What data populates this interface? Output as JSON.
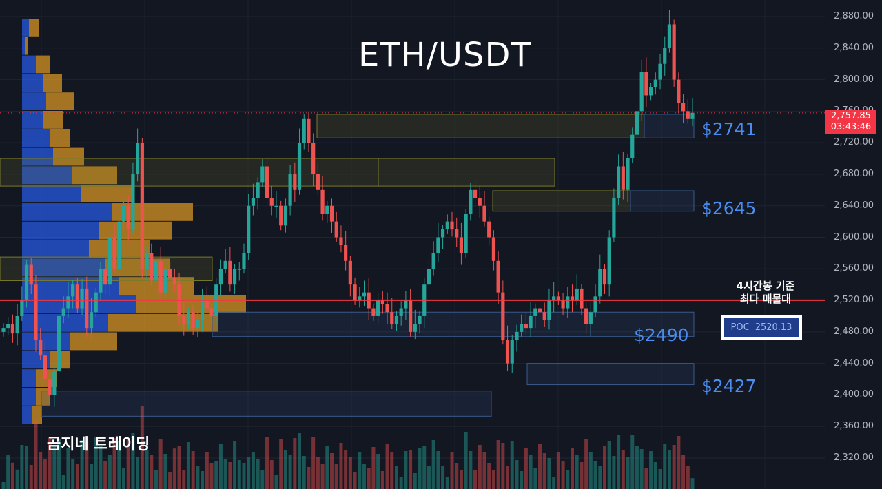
{
  "title": "ETH/USDT",
  "brand": "곰지네 트레이딩",
  "annotation": {
    "line1": "4시간봉 기준",
    "line2": "최다 매물대"
  },
  "poc": {
    "label": "POC",
    "value": "2520.13"
  },
  "current_price": {
    "price": "2,757.85",
    "countdown": "03:43:46",
    "color": "#f23645"
  },
  "zones": [
    {
      "label": "$2741",
      "low": 2726,
      "high": 2756
    },
    {
      "label": "$2645",
      "low": 2633,
      "high": 2659
    },
    {
      "label": "$2490",
      "low": 2474,
      "high": 2505
    },
    {
      "label": "$2427",
      "low": 2413,
      "high": 2440
    }
  ],
  "colors": {
    "background": "#131722",
    "up": "#26a69a",
    "down": "#ef5350",
    "poc_line": "#f23645",
    "zone_label": "#4a8cf0",
    "profile_blue": "#2962ff",
    "profile_orange": "#f5a623"
  },
  "chart_data": {
    "type": "candlestick",
    "y_axis": {
      "ticks": [
        "2,880.00",
        "2,840.00",
        "2,800.00",
        "2,760.00",
        "2,720.00",
        "2,680.00",
        "2,640.00",
        "2,600.00",
        "2,560.00",
        "2,520.00",
        "2,480.00",
        "2,440.00",
        "2,400.00",
        "2,360.00",
        "2,320.00"
      ],
      "ylim": [
        2300,
        2890
      ]
    },
    "poc_price": 2520.13,
    "last_price": 2757.85,
    "series_close": [
      2485,
      2490,
      2478,
      2500,
      2520,
      2565,
      2540,
      2470,
      2450,
      2420,
      2400,
      2430,
      2500,
      2510,
      2525,
      2540,
      2510,
      2535,
      2485,
      2505,
      2530,
      2560,
      2540,
      2600,
      2560,
      2620,
      2640,
      2610,
      2680,
      2720,
      2560,
      2580,
      2545,
      2570,
      2530,
      2560,
      2548,
      2540,
      2500,
      2490,
      2505,
      2485,
      2495,
      2520,
      2510,
      2500,
      2540,
      2560,
      2570,
      2540,
      2560,
      2560,
      2580,
      2640,
      2650,
      2670,
      2690,
      2650,
      2640,
      2640,
      2615,
      2640,
      2680,
      2660,
      2720,
      2750,
      2720,
      2680,
      2660,
      2630,
      2640,
      2620,
      2600,
      2590,
      2570,
      2540,
      2520,
      2525,
      2530,
      2510,
      2500,
      2520,
      2515,
      2505,
      2490,
      2500,
      2510,
      2520,
      2480,
      2490,
      2500,
      2540,
      2560,
      2580,
      2600,
      2610,
      2620,
      2610,
      2600,
      2580,
      2630,
      2660,
      2650,
      2640,
      2620,
      2600,
      2570,
      2530,
      2470,
      2440,
      2470,
      2480,
      2490,
      2485,
      2500,
      2510,
      2505,
      2495,
      2520,
      2525,
      2520,
      2510,
      2525,
      2520,
      2535,
      2510,
      2490,
      2505,
      2525,
      2560,
      2540,
      2600,
      2650,
      2690,
      2660,
      2700,
      2730,
      2760,
      2810,
      2780,
      2790,
      2800,
      2820,
      2840,
      2870,
      2800,
      2770,
      2760,
      2750,
      2758
    ],
    "volume_profile": [
      {
        "blue": 10,
        "orange": 14
      },
      {
        "blue": 4,
        "orange": 4
      },
      {
        "blue": 20,
        "orange": 20
      },
      {
        "blue": 30,
        "orange": 28
      },
      {
        "blue": 35,
        "orange": 40
      },
      {
        "blue": 30,
        "orange": 30
      },
      {
        "blue": 40,
        "orange": 30
      },
      {
        "blue": 45,
        "orange": 45
      },
      {
        "blue": 72,
        "orange": 66
      },
      {
        "blue": 85,
        "orange": 78
      },
      {
        "blue": 130,
        "orange": 118
      },
      {
        "blue": 112,
        "orange": 105
      },
      {
        "blue": 97,
        "orange": 88
      },
      {
        "blue": 120,
        "orange": 95
      },
      {
        "blue": 140,
        "orange": 110
      },
      {
        "blue": 165,
        "orange": 160
      },
      {
        "blue": 125,
        "orange": 160
      },
      {
        "blue": 70,
        "orange": 68
      },
      {
        "blue": 40,
        "orange": 30
      },
      {
        "blue": 20,
        "orange": 30
      },
      {
        "blue": 20,
        "orange": 20
      },
      {
        "blue": 15,
        "orange": 14
      }
    ]
  }
}
